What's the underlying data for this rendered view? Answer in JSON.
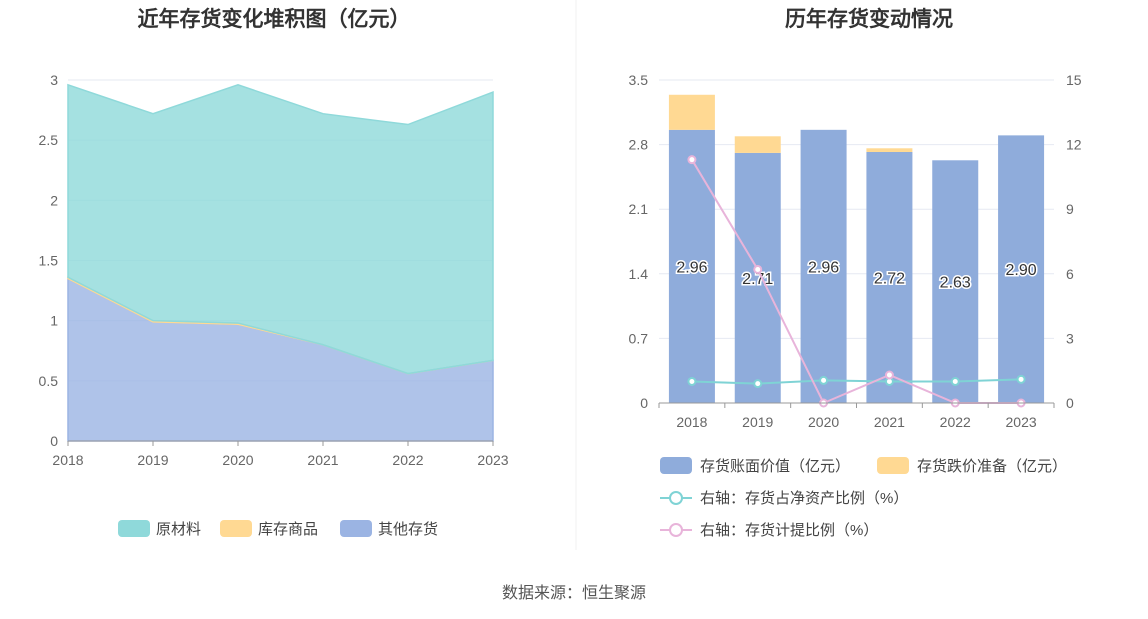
{
  "chart_data": [
    {
      "type": "area",
      "stacked": true,
      "title": "近年存货变化堆积图（亿元）",
      "x": [
        "2018",
        "2019",
        "2020",
        "2021",
        "2022",
        "2023"
      ],
      "ylim": [
        0,
        3
      ],
      "yticks": [
        "0",
        "0.5",
        "1",
        "1.5",
        "2",
        "2.5",
        "3"
      ],
      "series": [
        {
          "name": "其他存货",
          "values": [
            1.35,
            0.99,
            0.97,
            0.8,
            0.56,
            0.67
          ],
          "color": "#9bb4e3"
        },
        {
          "name": "库存商品",
          "values": [
            0.01,
            0.01,
            0.01,
            0.0,
            0.0,
            0.0
          ],
          "color": "#ffd993"
        },
        {
          "name": "原材料",
          "values": [
            1.6,
            1.72,
            1.98,
            1.92,
            2.07,
            2.23
          ],
          "color": "#8fd9da"
        }
      ],
      "legend": [
        "原材料",
        "库存商品",
        "其他存货"
      ],
      "legend_position": "bottom",
      "grid": true
    },
    {
      "type": "bar",
      "stacked": true,
      "title": "历年存货变动情况",
      "categories": [
        "2018",
        "2019",
        "2020",
        "2021",
        "2022",
        "2023"
      ],
      "ylim": [
        0,
        3.5
      ],
      "yticks": [
        "0",
        "0.7",
        "1.4",
        "2.1",
        "2.8",
        "3.5"
      ],
      "y2lim": [
        0,
        15
      ],
      "y2ticks": [
        "0",
        "3",
        "6",
        "9",
        "12",
        "15"
      ],
      "series": [
        {
          "name": "存货账面价值（亿元）",
          "values": [
            2.96,
            2.71,
            2.96,
            2.72,
            2.63,
            2.9
          ],
          "labels": [
            "2.96",
            "2.71",
            "2.96",
            "2.72",
            "2.63",
            "2.90"
          ],
          "color": "#8facdb"
        },
        {
          "name": "存货跌价准备（亿元）",
          "values": [
            0.38,
            0.18,
            0.0,
            0.04,
            0.0,
            0.0
          ],
          "color": "#ffd993"
        },
        {
          "name": "右轴：存货占净资产比例（%）",
          "type": "line",
          "axis": "right",
          "values": [
            1.0,
            0.9,
            1.05,
            1.0,
            1.0,
            1.1
          ],
          "color": "#7fd3d5"
        },
        {
          "name": "右轴：存货计提比例（%）",
          "type": "line",
          "axis": "right",
          "values": [
            11.3,
            6.2,
            0.0,
            1.3,
            0.0,
            0.0
          ],
          "color": "#e8b4da"
        }
      ],
      "legend_position": "bottom",
      "grid": true
    }
  ],
  "footer": {
    "source": "数据来源：恒生聚源"
  }
}
